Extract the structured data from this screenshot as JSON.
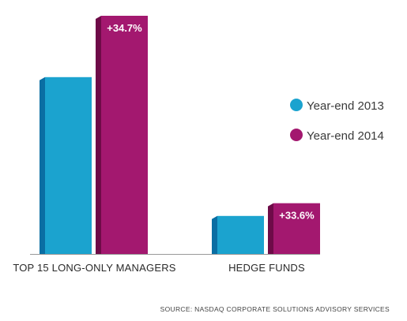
{
  "chart_data": {
    "type": "bar",
    "categories": [
      "TOP 15 LONG-ONLY MANAGERS",
      "HEDGE FUNDS"
    ],
    "series": [
      {
        "name": "Year-end 2013",
        "values": [
          100,
          21.5
        ],
        "data_labels": [
          "",
          ""
        ]
      },
      {
        "name": "Year-end 2014",
        "values": [
          134.7,
          28.7
        ],
        "data_labels": [
          "+34.7%",
          "+33.6%"
        ]
      }
    ],
    "ylim": [
      0,
      134.7
    ],
    "grid": false,
    "legend_position": "right"
  },
  "colors": {
    "series_2013_front": "#1ba3cf",
    "series_2013_side": "#0a6ea3",
    "series_2014_front": "#a3186f",
    "series_2014_side": "#6e0b48",
    "baseline": "#999999"
  },
  "footer": {
    "source": "SOURCE: NASDAQ CORPORATE SOLUTIONS ADVISORY SERVICES"
  }
}
